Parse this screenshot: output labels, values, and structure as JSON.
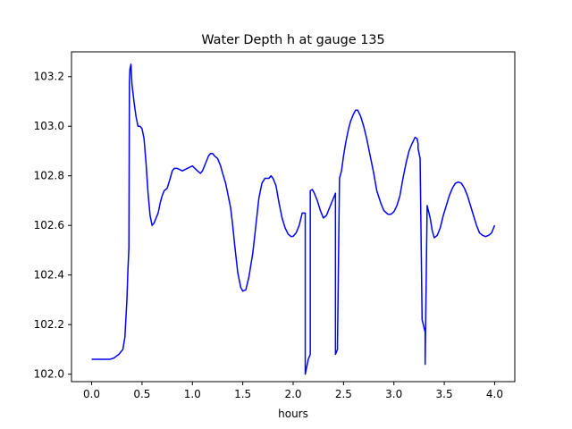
{
  "chart_data": {
    "type": "line",
    "title": "Water Depth h at gauge 135",
    "xlabel": "hours",
    "ylabel": "",
    "xlim": [
      -0.2,
      4.2
    ],
    "ylim": [
      101.97,
      103.3
    ],
    "x_ticks": [
      0.0,
      0.5,
      1.0,
      1.5,
      2.0,
      2.5,
      3.0,
      3.5,
      4.0
    ],
    "x_tick_labels": [
      "0.0",
      "0.5",
      "1.0",
      "1.5",
      "2.0",
      "2.5",
      "3.0",
      "3.5",
      "4.0"
    ],
    "y_ticks": [
      102.0,
      102.2,
      102.4,
      102.6,
      102.8,
      103.0,
      103.2
    ],
    "y_tick_labels": [
      "102.0",
      "102.2",
      "102.4",
      "102.6",
      "102.8",
      "103.0",
      "103.2"
    ],
    "grid": false,
    "series": [
      {
        "color": "#0000ff",
        "x": [
          0.0,
          0.1,
          0.18,
          0.22,
          0.27,
          0.31,
          0.33,
          0.35,
          0.36,
          0.37,
          0.375,
          0.38,
          0.39,
          0.4,
          0.42,
          0.44,
          0.46,
          0.48,
          0.5,
          0.52,
          0.54,
          0.56,
          0.58,
          0.6,
          0.62,
          0.64,
          0.66,
          0.68,
          0.7,
          0.72,
          0.75,
          0.78,
          0.8,
          0.82,
          0.85,
          0.9,
          0.95,
          1.0,
          1.05,
          1.08,
          1.1,
          1.13,
          1.16,
          1.18,
          1.2,
          1.22,
          1.25,
          1.28,
          1.3,
          1.33,
          1.35,
          1.38,
          1.4,
          1.42,
          1.45,
          1.48,
          1.5,
          1.53,
          1.56,
          1.6,
          1.63,
          1.66,
          1.69,
          1.72,
          1.76,
          1.78,
          1.8,
          1.83,
          1.86,
          1.89,
          1.92,
          1.95,
          1.98,
          2.0,
          2.03,
          2.06,
          2.09,
          2.12,
          2.12,
          2.15,
          2.17,
          2.17,
          2.19,
          2.21,
          2.24,
          2.27,
          2.3,
          2.33,
          2.35,
          2.37,
          2.39,
          2.41,
          2.42,
          2.42,
          2.44,
          2.44,
          2.46,
          2.48,
          2.5,
          2.52,
          2.55,
          2.57,
          2.6,
          2.62,
          2.64,
          2.67,
          2.7,
          2.73,
          2.76,
          2.8,
          2.83,
          2.87,
          2.9,
          2.94,
          2.97,
          3.0,
          3.03,
          3.06,
          3.09,
          3.12,
          3.15,
          3.18,
          3.21,
          3.23,
          3.24,
          3.24,
          3.26,
          3.28,
          3.31,
          3.31,
          3.33,
          3.36,
          3.38,
          3.4,
          3.43,
          3.46,
          3.49,
          3.52,
          3.55,
          3.58,
          3.61,
          3.64,
          3.67,
          3.7,
          3.73,
          3.76,
          3.79,
          3.82,
          3.85,
          3.88,
          3.91,
          3.94,
          3.97,
          4.0
        ],
        "y": [
          102.06,
          102.06,
          102.06,
          102.065,
          102.08,
          102.1,
          102.15,
          102.3,
          102.42,
          102.51,
          103.18,
          103.23,
          103.25,
          103.17,
          103.1,
          103.04,
          103.0,
          103.0,
          102.99,
          102.95,
          102.85,
          102.73,
          102.64,
          102.6,
          102.61,
          102.63,
          102.65,
          102.69,
          102.72,
          102.74,
          102.75,
          102.79,
          102.82,
          102.83,
          102.83,
          102.82,
          102.83,
          102.84,
          102.82,
          102.81,
          102.82,
          102.85,
          102.88,
          102.89,
          102.89,
          102.88,
          102.87,
          102.84,
          102.81,
          102.77,
          102.73,
          102.67,
          102.6,
          102.52,
          102.41,
          102.35,
          102.335,
          102.34,
          102.39,
          102.49,
          102.6,
          102.71,
          102.77,
          102.79,
          102.79,
          102.8,
          102.79,
          102.76,
          102.69,
          102.63,
          102.59,
          102.565,
          102.555,
          102.556,
          102.57,
          102.6,
          102.65,
          102.65,
          102.0,
          102.06,
          102.08,
          102.74,
          102.745,
          102.73,
          102.7,
          102.66,
          102.63,
          102.64,
          102.66,
          102.68,
          102.7,
          102.72,
          102.73,
          102.08,
          102.1,
          102.12,
          102.79,
          102.82,
          102.88,
          102.93,
          102.99,
          103.02,
          103.05,
          103.065,
          103.065,
          103.04,
          103.0,
          102.95,
          102.89,
          102.81,
          102.74,
          102.69,
          102.66,
          102.645,
          102.645,
          102.655,
          102.68,
          102.72,
          102.79,
          102.85,
          102.9,
          102.93,
          102.955,
          102.95,
          102.93,
          102.91,
          102.87,
          102.22,
          102.17,
          102.04,
          102.68,
          102.63,
          102.58,
          102.55,
          102.56,
          102.59,
          102.64,
          102.68,
          102.72,
          102.75,
          102.77,
          102.775,
          102.77,
          102.75,
          102.72,
          102.68,
          102.64,
          102.6,
          102.57,
          102.56,
          102.555,
          102.56,
          102.57,
          102.6
        ]
      }
    ]
  }
}
